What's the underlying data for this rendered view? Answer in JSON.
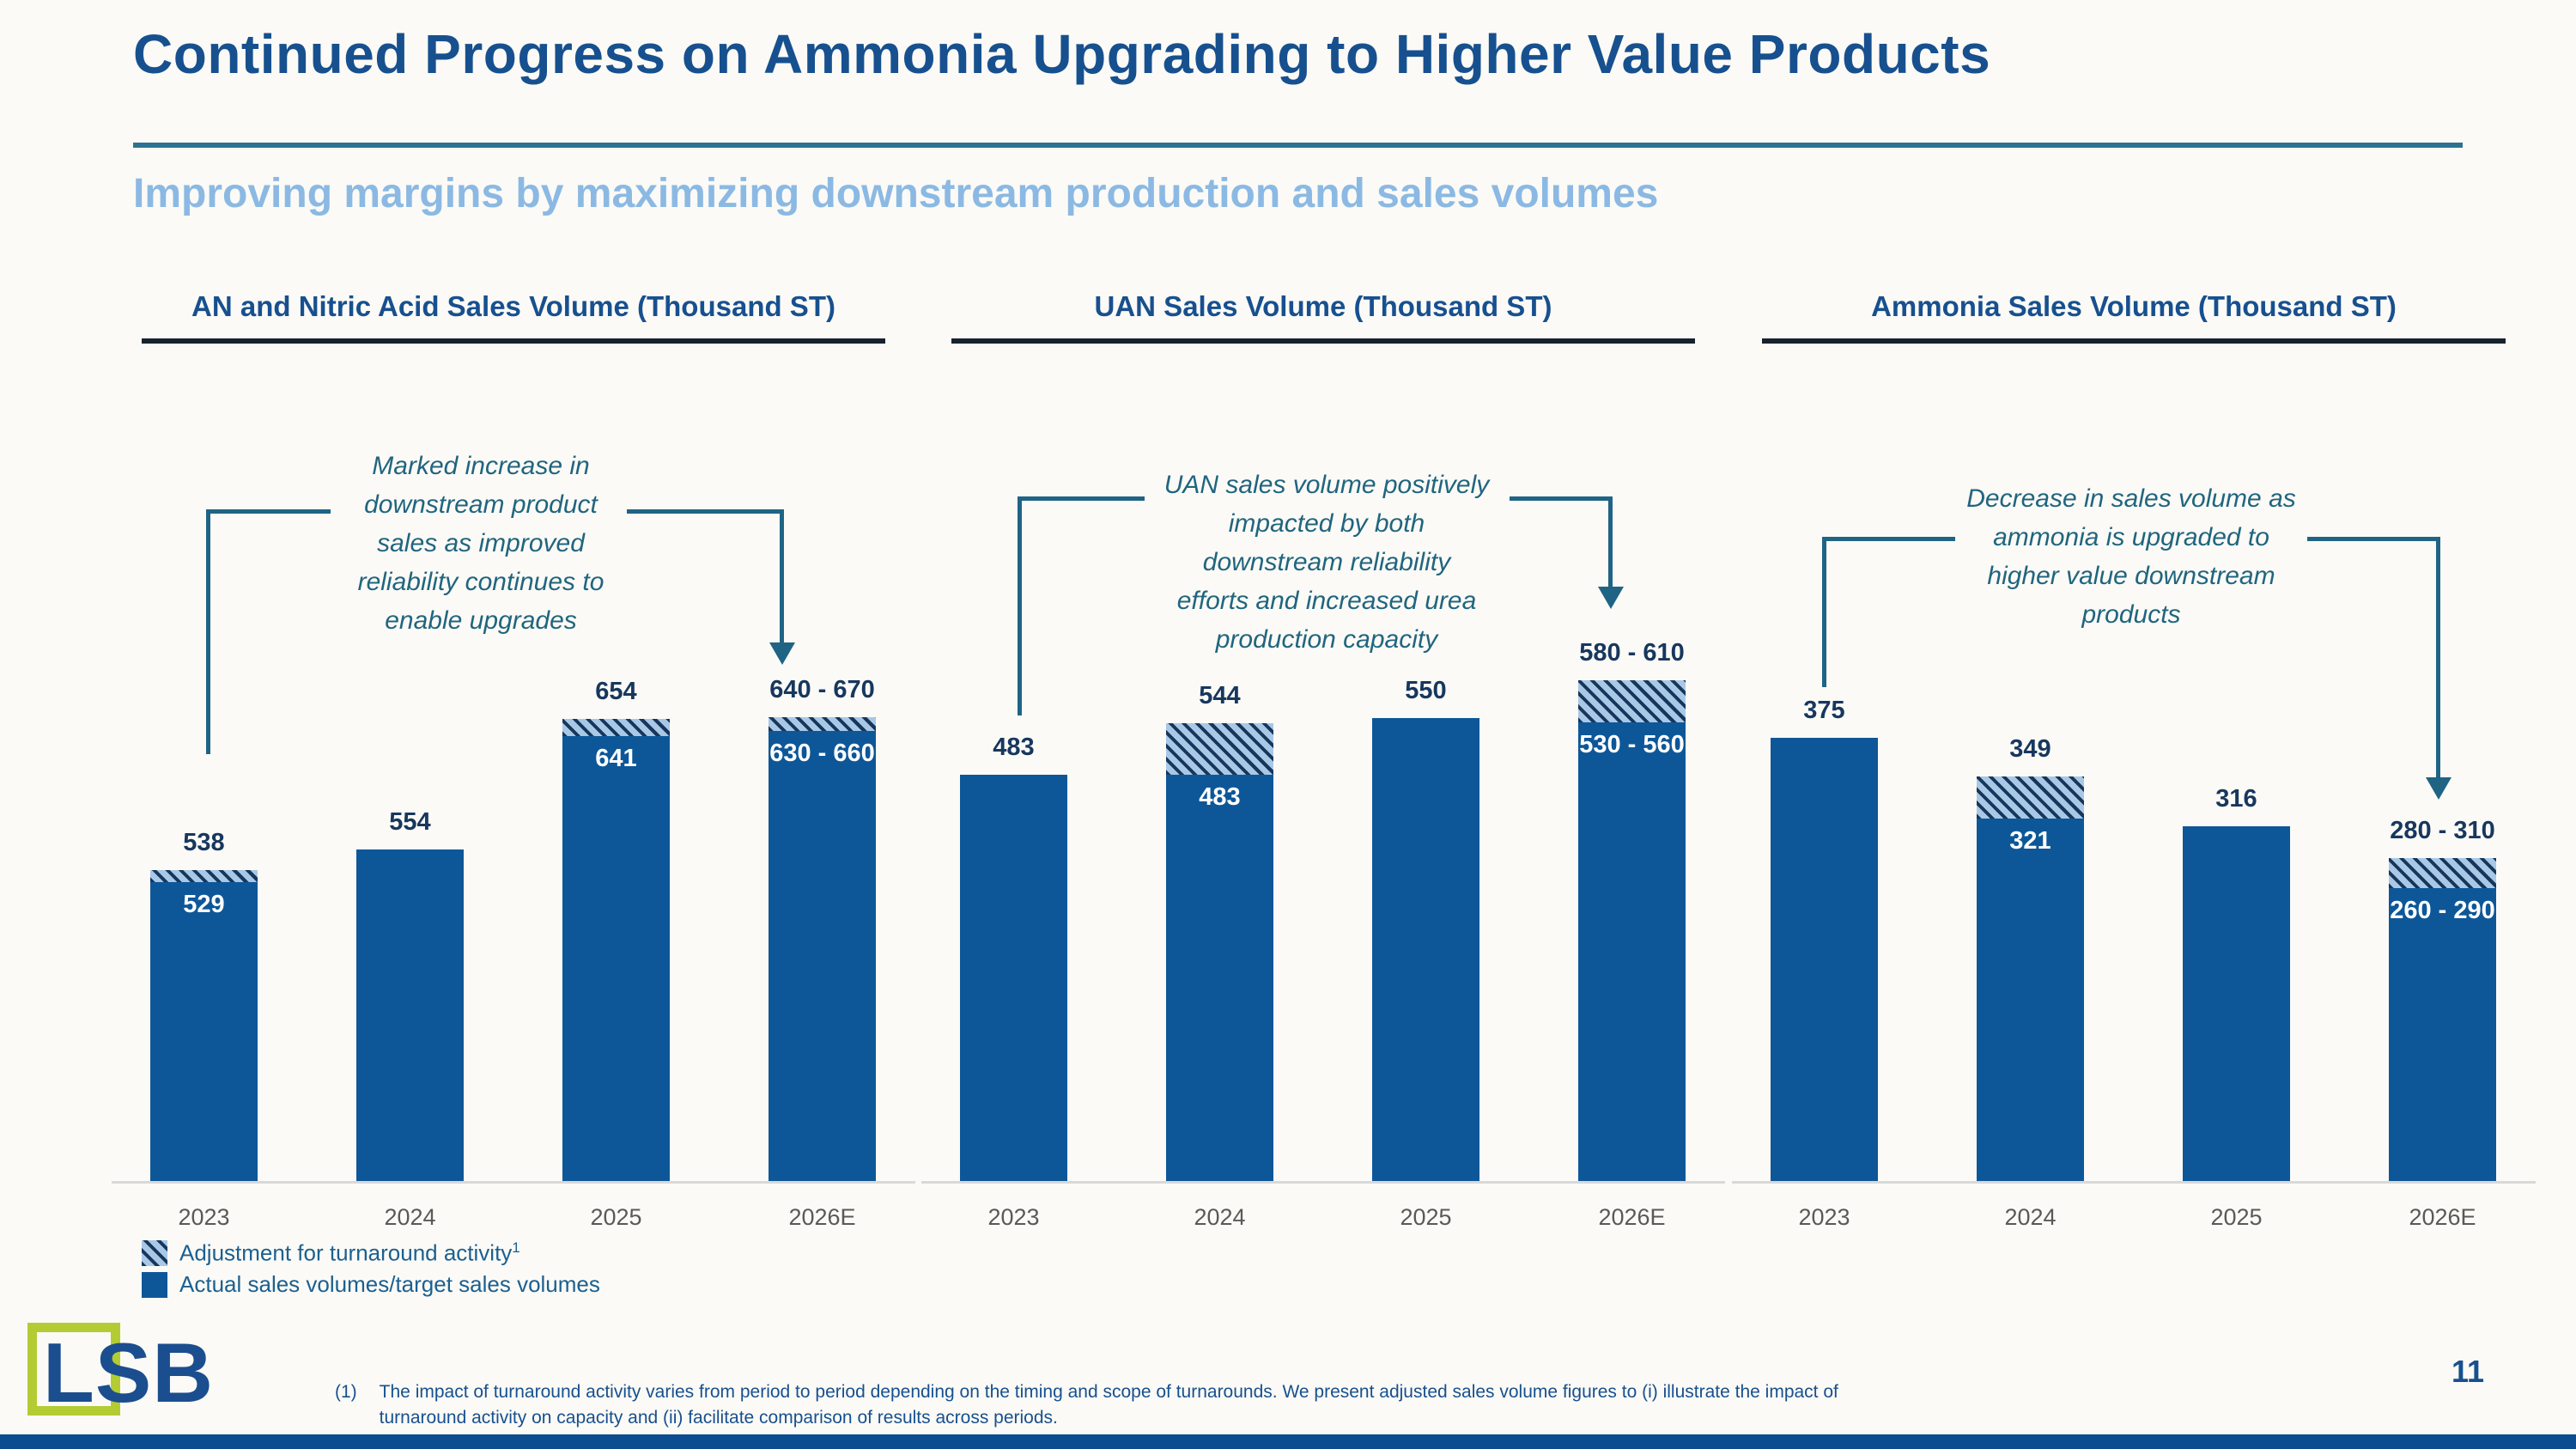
{
  "slide": {
    "title": "Continued Progress on Ammonia Upgrading to Higher Value Products",
    "subtitle": "Improving margins by maximizing downstream production and sales volumes",
    "page_number": "11",
    "logo_text": "LSB",
    "footnote_marker": "(1)",
    "footnote_text": "The impact of turnaround activity varies from period to period depending on the timing and scope of turnarounds. We present adjusted sales volume figures to (i) illustrate the impact of turnaround activity on capacity and (ii) facilitate comparison of results across periods."
  },
  "legend": {
    "items": [
      {
        "swatch": "hatched",
        "label": "Adjustment for turnaround activity",
        "superscript": "1"
      },
      {
        "swatch": "solid",
        "label": "Actual sales volumes/target sales volumes",
        "superscript": ""
      }
    ]
  },
  "colors": {
    "bar_solid": "#0D5799",
    "hatch_background": "#A9C8E6",
    "hatch_stripe": "#16365C",
    "title_blue": "#17508F",
    "subtitle_blue": "#8BB9E3",
    "annotation_teal": "#20657F",
    "connector_teal": "#1F6485",
    "data_label_navy": "#17375E",
    "axis_label_gray": "#595959",
    "legend_text_blue": "#1C6090",
    "logo_green": "#B3CC33",
    "bottom_bar_blue": "#0C4D90"
  },
  "chart_data": [
    {
      "type": "bar",
      "title": "AN and Nitric Acid Sales Volume (Thousand ST)",
      "categories": [
        "2023",
        "2024",
        "2025",
        "2026E"
      ],
      "stacked": true,
      "legend_position": "bottom-left",
      "gridlines": false,
      "ylim": [
        300,
        700
      ],
      "bars": [
        {
          "category": "2023",
          "actual": 529,
          "actual_label": "529",
          "adjustment": 9,
          "total": 538,
          "total_label": "538"
        },
        {
          "category": "2024",
          "actual": 554,
          "adjustment": 0,
          "total": 554,
          "total_label": "554"
        },
        {
          "category": "2025",
          "actual": 641,
          "actual_label": "641",
          "adjustment": 13,
          "total": 654,
          "total_label": "654"
        },
        {
          "category": "2026E",
          "actual": 645,
          "actual_range": [
            630,
            660
          ],
          "actual_label": "630 - 660",
          "adjustment": 10,
          "total": 655,
          "total_range": [
            640,
            670
          ],
          "total_label": "640 - 670"
        }
      ],
      "annotation": {
        "lines": [
          "Marked increase in",
          "downstream product",
          "sales as improved",
          "reliability continues to",
          "enable upgrades"
        ]
      }
    },
    {
      "type": "bar",
      "title": "UAN Sales Volume (Thousand ST)",
      "categories": [
        "2023",
        "2024",
        "2025",
        "2026E"
      ],
      "stacked": true,
      "gridlines": false,
      "ylim": [
        0,
        620
      ],
      "bars": [
        {
          "category": "2023",
          "actual": 483,
          "adjustment": 0,
          "total": 483,
          "total_label": "483"
        },
        {
          "category": "2024",
          "actual": 483,
          "actual_label": "483",
          "adjustment": 61,
          "total": 544,
          "total_label": "544"
        },
        {
          "category": "2025",
          "actual": 550,
          "adjustment": 0,
          "total": 550,
          "total_label": "550"
        },
        {
          "category": "2026E",
          "actual": 545,
          "actual_range": [
            530,
            560
          ],
          "actual_label": "530 - 560",
          "adjustment": 50,
          "total": 595,
          "total_range": [
            580,
            610
          ],
          "total_label": "580 - 610"
        }
      ],
      "annotation": {
        "lines": [
          "UAN sales volume positively",
          "impacted by both",
          "downstream reliability",
          "efforts and increased urea",
          "production capacity"
        ]
      }
    },
    {
      "type": "bar",
      "title": "Ammonia Sales Volume (Thousand ST)",
      "categories": [
        "2023",
        "2024",
        "2025",
        "2026E"
      ],
      "stacked": true,
      "gridlines": false,
      "ylim": [
        80,
        420
      ],
      "bars": [
        {
          "category": "2023",
          "actual": 375,
          "adjustment": 0,
          "total": 375,
          "total_label": "375"
        },
        {
          "category": "2024",
          "actual": 321,
          "actual_label": "321",
          "adjustment": 28,
          "total": 349,
          "total_label": "349"
        },
        {
          "category": "2025",
          "actual": 316,
          "adjustment": 0,
          "total": 316,
          "total_label": "316"
        },
        {
          "category": "2026E",
          "actual": 275,
          "actual_range": [
            260,
            290
          ],
          "actual_label": "260 - 290",
          "adjustment": 20,
          "total": 295,
          "total_range": [
            280,
            310
          ],
          "total_label": "280 - 310"
        }
      ],
      "annotation": {
        "lines": [
          "Decrease in sales volume as",
          "ammonia is upgraded to",
          "higher value downstream",
          "products"
        ]
      }
    }
  ]
}
